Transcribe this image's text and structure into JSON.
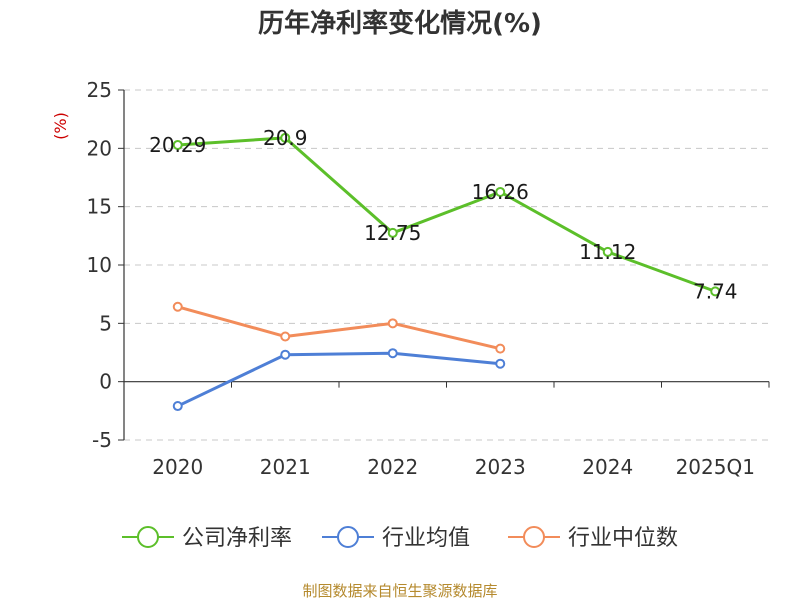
{
  "chart_data": {
    "type": "line",
    "title": "历年净利率变化情况(%)",
    "y_unit": "(%)",
    "categories": [
      "2020",
      "2021",
      "2022",
      "2023",
      "2024",
      "2025Q1"
    ],
    "ylim": [
      -5,
      25
    ],
    "yticks": [
      -5,
      0,
      5,
      10,
      15,
      20,
      25
    ],
    "grid": true,
    "legend_position": "bottom",
    "series": [
      {
        "name": "公司净利率",
        "color": "#5cbf2a",
        "values": [
          20.29,
          20.9,
          12.75,
          16.26,
          11.12,
          7.74
        ],
        "labels": [
          "20.29",
          "20.9",
          "12.75",
          "16.26",
          "11.12",
          "7.74"
        ]
      },
      {
        "name": "行业均值",
        "color": "#4e7fd6",
        "values": [
          -2.09,
          2.31,
          2.44,
          1.54,
          null,
          null
        ]
      },
      {
        "name": "行业中位数",
        "color": "#f28c5a",
        "values": [
          6.42,
          3.87,
          5.0,
          2.83,
          null,
          null
        ]
      }
    ]
  },
  "footer": {
    "source": "制图数据来自恒生聚源数据库"
  }
}
